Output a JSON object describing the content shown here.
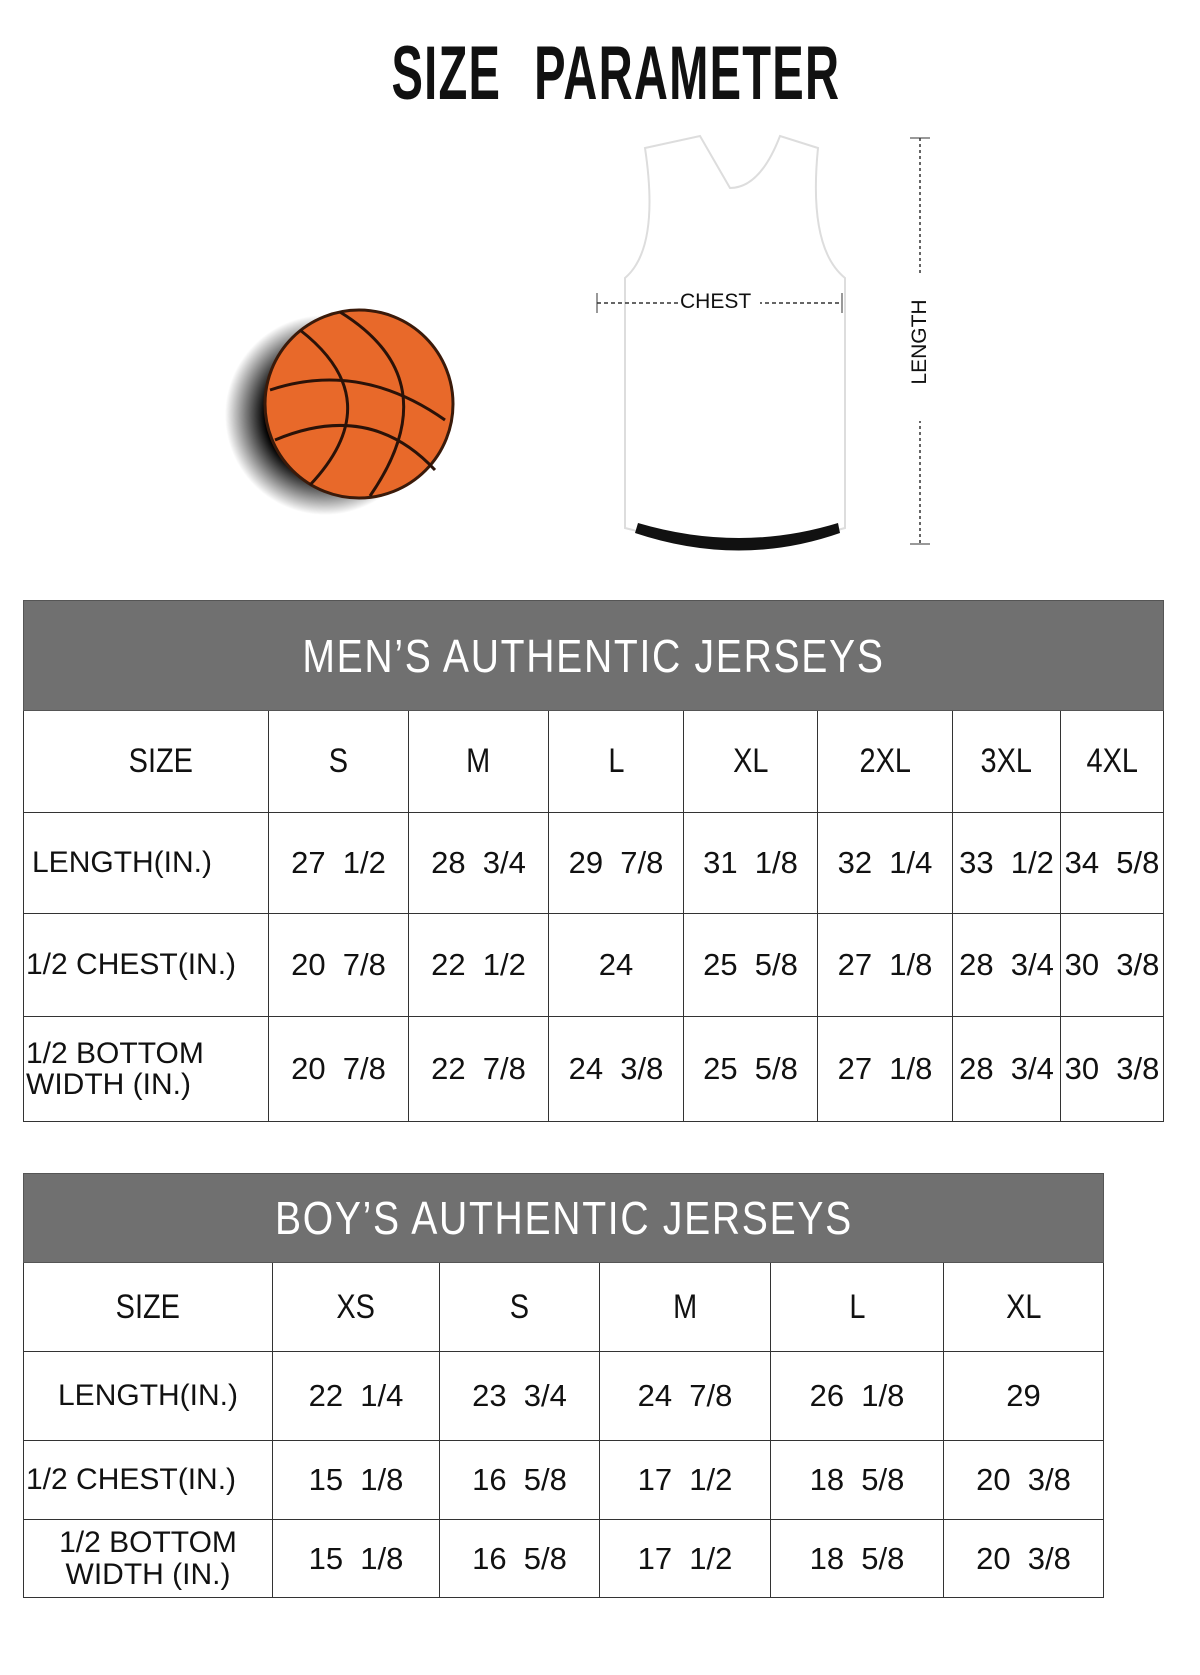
{
  "title": "SIZE PARAMETER",
  "diagram": {
    "chest_label": "CHEST",
    "length_label": "LENGTH"
  },
  "colors": {
    "header_bg": "#707070",
    "ball": "#e8692a"
  },
  "men": {
    "heading": "MEN’S AUTHENTIC JERSEYS",
    "size_label": "SIZE",
    "sizes": [
      "S",
      "M",
      "L",
      "XL",
      "2XL",
      "3XL",
      "4XL"
    ],
    "rows": [
      {
        "label": "LENGTH(IN.)",
        "values": [
          "27  1/2",
          "28  3/4",
          "29  7/8",
          "31  1/8",
          "32  1/4",
          "33  1/2",
          "34  5/8"
        ]
      },
      {
        "label": "1/2 CHEST(IN.)",
        "values": [
          "20  7/8",
          "22  1/2",
          "24",
          "25  5/8",
          "27  1/8",
          "28  3/4",
          "30  3/8"
        ]
      },
      {
        "label": "1/2 BOTTOM WIDTH  (IN.)",
        "values": [
          "20  7/8",
          "22  7/8",
          "24  3/8",
          "25  5/8",
          "27  1/8",
          "28  3/4",
          "30  3/8"
        ]
      }
    ]
  },
  "boys": {
    "heading": "BOY’S AUTHENTIC JERSEYS",
    "size_label": "SIZE",
    "sizes": [
      "XS",
      "S",
      "M",
      "L",
      "XL"
    ],
    "rows": [
      {
        "label": "LENGTH(IN.)",
        "values": [
          "22  1/4",
          "23  3/4",
          "24  7/8",
          "26  1/8",
          "29"
        ]
      },
      {
        "label": "1/2 CHEST(IN.)",
        "values": [
          "15  1/8",
          "16  5/8",
          "17  1/2",
          "18  5/8",
          "20  3/8"
        ]
      },
      {
        "label": "1/2 BOTTOM WIDTH  (IN.)",
        "values": [
          "15  1/8",
          "16  5/8",
          "17  1/2",
          "18  5/8",
          "20  3/8"
        ]
      }
    ]
  }
}
